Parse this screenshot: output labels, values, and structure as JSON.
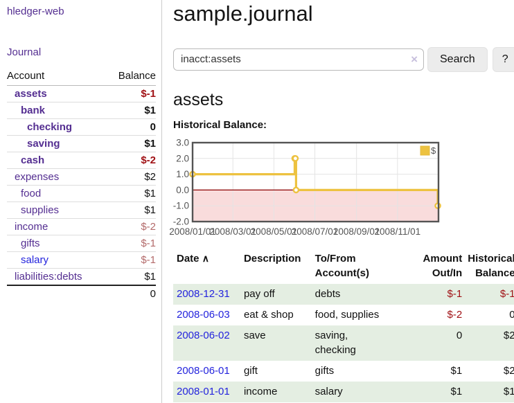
{
  "colors": {
    "link_purple": "#542e91",
    "link_blue": "#2323dd",
    "negative": "#a01115",
    "negative_muted": "#b36a6a",
    "row_stripe_green": "#e4eee2",
    "series_yellow": "#edc240",
    "series_marker_stroke": "#e5b93c",
    "zero_line": "#8b0000",
    "negative_region": "#f9dcdc",
    "axis_text": "#545454",
    "plot_border": "#545454",
    "gridline": "#e4e4e4"
  },
  "app": {
    "brand": "hledger-web",
    "nav_journal": "Journal"
  },
  "sidebar": {
    "headers": {
      "account": "Account",
      "balance": "Balance"
    },
    "accounts": [
      {
        "label": "assets",
        "depth": 1,
        "bold": true,
        "link": "purple",
        "balance": "$-1",
        "balance_style": "neg"
      },
      {
        "label": "bank",
        "depth": 2,
        "bold": true,
        "link": "purple",
        "balance": "$1",
        "balance_style": "pos"
      },
      {
        "label": "checking",
        "depth": 3,
        "bold": true,
        "link": "purple",
        "balance": "0",
        "balance_style": "pos"
      },
      {
        "label": "saving",
        "depth": 3,
        "bold": true,
        "link": "purple",
        "balance": "$1",
        "balance_style": "pos"
      },
      {
        "label": "cash",
        "depth": 2,
        "bold": true,
        "link": "purple",
        "balance": "$-2",
        "balance_style": "neg"
      },
      {
        "label": "expenses",
        "depth": 1,
        "bold": false,
        "link": "purple",
        "balance": "$2",
        "balance_style": "pos"
      },
      {
        "label": "food",
        "depth": 2,
        "bold": false,
        "link": "purple",
        "balance": "$1",
        "balance_style": "pos"
      },
      {
        "label": "supplies",
        "depth": 2,
        "bold": false,
        "link": "purple",
        "balance": "$1",
        "balance_style": "pos"
      },
      {
        "label": "income",
        "depth": 1,
        "bold": false,
        "link": "purple",
        "balance": "$-2",
        "balance_style": "neg-muted"
      },
      {
        "label": "gifts",
        "depth": 2,
        "bold": false,
        "link": "purple",
        "balance": "$-1",
        "balance_style": "neg-muted"
      },
      {
        "label": "salary",
        "depth": 2,
        "bold": false,
        "link": "blue",
        "balance": "$-1",
        "balance_style": "neg-muted"
      },
      {
        "label": "liabilities:debts",
        "depth": 1,
        "bold": false,
        "link": "purple",
        "balance": "$1",
        "balance_style": "pos"
      }
    ],
    "total": "0"
  },
  "page": {
    "title": "sample.journal"
  },
  "search": {
    "value": "inacct:assets",
    "clear_icon": "×",
    "submit_label": "Search",
    "help_label": "?"
  },
  "account": {
    "heading": "assets",
    "chart_label": "Historical Balance:"
  },
  "chart_data": {
    "type": "line",
    "step": true,
    "title": "Historical Balance:",
    "series": [
      {
        "name": "$",
        "color": "#edc240",
        "points": [
          [
            "2008-01-01",
            1.0
          ],
          [
            "2008-06-01",
            2.0
          ],
          [
            "2008-06-02",
            2.0
          ],
          [
            "2008-06-03",
            0.0
          ],
          [
            "2008-12-31",
            -1.0
          ]
        ]
      }
    ],
    "x_range": [
      "2008-01-01",
      "2009-01-01"
    ],
    "ylim": [
      -2.0,
      3.0
    ],
    "yticks": [
      "3.0",
      "2.0",
      "1.0",
      "0.0",
      "-1.0",
      "-2.0"
    ],
    "xticks": [
      "2008/01/01",
      "2008/03/01",
      "2008/05/01",
      "2008/07/01",
      "2008/09/01",
      "2008/11/01"
    ],
    "legend": {
      "label": "$",
      "position": "top-right"
    },
    "grid": true,
    "negative_region_shaded": true
  },
  "register": {
    "sort_icon": "∧",
    "columns": [
      {
        "line1": "Date",
        "line2": "",
        "align": "left"
      },
      {
        "line1": "Description",
        "line2": "",
        "align": "left"
      },
      {
        "line1": "To/From",
        "line2": "Account(s)",
        "align": "left"
      },
      {
        "line1": "Amount",
        "line2": "Out/In",
        "align": "right"
      },
      {
        "line1": "Historical",
        "line2": "Balance",
        "align": "right"
      }
    ],
    "rows": [
      {
        "date": "2008-12-31",
        "description": "pay off",
        "accounts": "debts",
        "amount": "$-1",
        "amount_style": "neg",
        "balance": "$-1",
        "balance_style": "neg"
      },
      {
        "date": "2008-06-03",
        "description": "eat & shop",
        "accounts": "food, supplies",
        "amount": "$-2",
        "amount_style": "neg",
        "balance": "0",
        "balance_style": "pos"
      },
      {
        "date": "2008-06-02",
        "description": "save",
        "accounts": "saving, checking",
        "amount": "0",
        "amount_style": "pos",
        "balance": "$2",
        "balance_style": "pos"
      },
      {
        "date": "2008-06-01",
        "description": "gift",
        "accounts": "gifts",
        "amount": "$1",
        "amount_style": "pos",
        "balance": "$2",
        "balance_style": "pos"
      },
      {
        "date": "2008-01-01",
        "description": "income",
        "accounts": "salary",
        "amount": "$1",
        "amount_style": "pos",
        "balance": "$1",
        "balance_style": "pos"
      }
    ]
  }
}
